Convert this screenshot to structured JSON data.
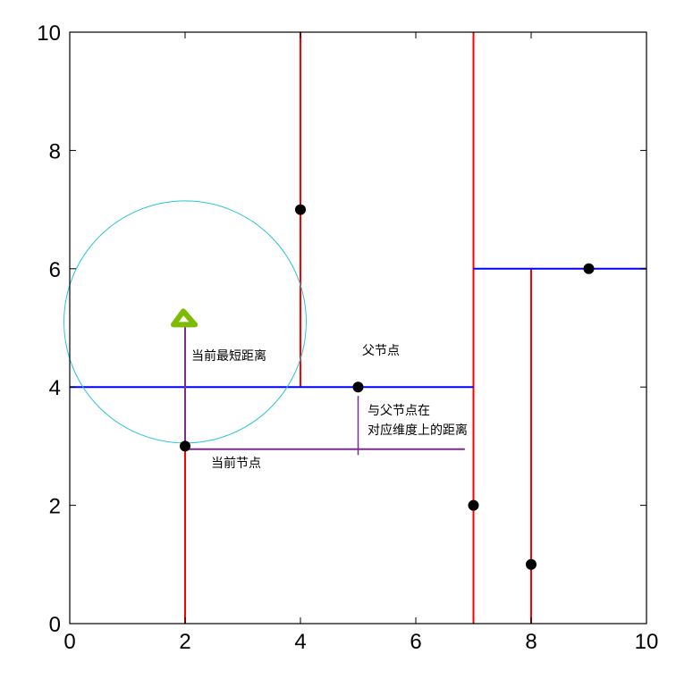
{
  "chart_data": {
    "type": "scatter",
    "xlim": [
      0,
      10
    ],
    "ylim": [
      0,
      10
    ],
    "x_ticks": [
      "0",
      "2",
      "4",
      "6",
      "8",
      "10"
    ],
    "y_ticks": [
      "0",
      "2",
      "4",
      "6",
      "8",
      "10"
    ],
    "grid": false,
    "points": [
      {
        "x": 2,
        "y": 3
      },
      {
        "x": 4,
        "y": 7
      },
      {
        "x": 5,
        "y": 4
      },
      {
        "x": 7,
        "y": 2
      },
      {
        "x": 8,
        "y": 1
      },
      {
        "x": 9,
        "y": 6
      }
    ],
    "target_point": {
      "x": 2,
      "y": 5.1
    },
    "search_radius": 2.1,
    "splits": [
      {
        "axis": "x",
        "at": 2,
        "from": 0,
        "to": 4,
        "color": "#ff0000"
      },
      {
        "axis": "x",
        "at": 4,
        "from": 4,
        "to": 10,
        "color": "#ff0000"
      },
      {
        "axis": "x",
        "at": 7,
        "from": 0,
        "to": 10,
        "color": "#ff0000"
      },
      {
        "axis": "x",
        "at": 8,
        "from": 0,
        "to": 6,
        "color": "#ff0000"
      },
      {
        "axis": "y",
        "at": 4,
        "from": 0,
        "to": 7,
        "color": "#0000ff"
      },
      {
        "axis": "y",
        "at": 6,
        "from": 7,
        "to": 10,
        "color": "#0000ff"
      }
    ],
    "annotations": {
      "current_shortest_distance": "当前最短距离",
      "parent_node": "父节点",
      "distance_to_parent_line1": "与父节点在",
      "distance_to_parent_line2": "对应维度上的距离",
      "current_node": "当前节点"
    },
    "colors": {
      "split_vertical": "#ff0000",
      "split_horizontal": "#0000ff",
      "circle": "#29c4d4",
      "target": "#7cbb00",
      "annotation_line": "#7b2d8b",
      "point": "#000000"
    }
  }
}
